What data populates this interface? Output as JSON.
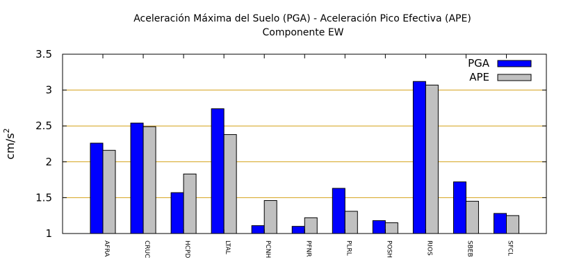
{
  "chart_data": {
    "type": "bar",
    "title": "Aceleración Máxima del Suelo (PGA) -  Aceleración Pico Efectiva (APE)",
    "subtitle": "Componente EW",
    "xlabel": "",
    "ylabel": "cm/s",
    "ylabel_superscript": "2",
    "ylim": [
      1,
      3.5
    ],
    "yticks": [
      1,
      1.5,
      2,
      2.5,
      3,
      3.5
    ],
    "ytick_labels": [
      "1",
      "1.5",
      "2",
      "2.5",
      "3",
      "3.5"
    ],
    "grid": "horizontal",
    "legend_position": "top-right",
    "categories": [
      "AFRA",
      "CRUC",
      "HCPD",
      "LTAL",
      "PCNH",
      "PFNR",
      "PLRL",
      "POSH",
      "RIOS",
      "SBEB",
      "SFCL"
    ],
    "series": [
      {
        "name": "PGA",
        "color": "#0000ff",
        "values": [
          2.26,
          2.54,
          1.57,
          2.74,
          1.11,
          1.1,
          1.63,
          1.18,
          3.12,
          1.72,
          1.28
        ]
      },
      {
        "name": "APE",
        "color": "#c0c0c0",
        "values": [
          2.16,
          2.49,
          1.83,
          2.38,
          1.46,
          1.22,
          1.31,
          1.15,
          3.07,
          1.45,
          1.25
        ]
      }
    ],
    "gridline_color": "#d4a017"
  }
}
